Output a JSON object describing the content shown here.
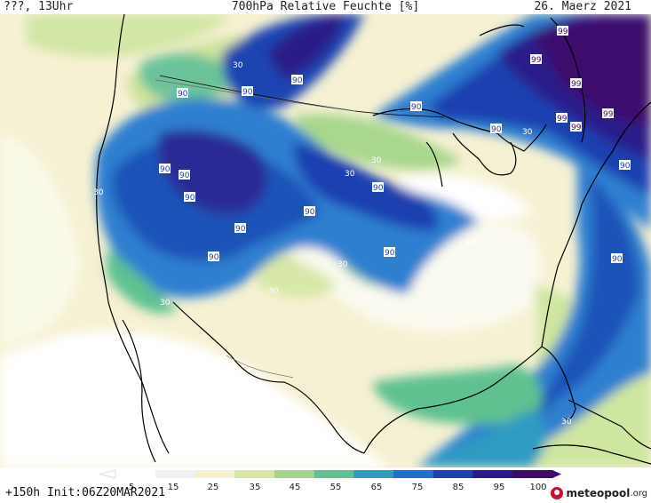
{
  "header": {
    "left": "???, 13Uhr",
    "center": "700hPa Relative Feuchte [%]",
    "right": "26. Maerz 2021"
  },
  "footer": {
    "run_info": "+150h Init:06Z20MAR2021",
    "logo_text": "meteopool",
    "logo_suffix": ".org"
  },
  "legend": {
    "ticks": [
      "5",
      "15",
      "25",
      "35",
      "45",
      "55",
      "65",
      "75",
      "85",
      "95",
      "100"
    ],
    "colors": [
      "#ffffff",
      "#f2f2f2",
      "#f5f0d0",
      "#d8e6a3",
      "#a6d58b",
      "#5fc190",
      "#2e9bc2",
      "#1f6fce",
      "#1e3fb0",
      "#2a1a8a",
      "#3d0a6e"
    ]
  },
  "map_labels": [
    {
      "text": "90"
    },
    {
      "text": "90"
    },
    {
      "text": "90"
    },
    {
      "text": "90"
    },
    {
      "text": "90"
    },
    {
      "text": "90"
    },
    {
      "text": "90"
    },
    {
      "text": "90"
    },
    {
      "text": "90"
    },
    {
      "text": "90"
    },
    {
      "text": "90"
    },
    {
      "text": "90"
    },
    {
      "text": "90"
    },
    {
      "text": "90"
    },
    {
      "text": "90"
    },
    {
      "text": "99"
    },
    {
      "text": "99"
    },
    {
      "text": "99"
    },
    {
      "text": "99"
    },
    {
      "text": "99"
    },
    {
      "text": "99"
    },
    {
      "text": "30"
    },
    {
      "text": "30"
    },
    {
      "text": "30"
    },
    {
      "text": "30"
    },
    {
      "text": "30"
    },
    {
      "text": "30"
    },
    {
      "text": "30"
    },
    {
      "text": "30"
    },
    {
      "text": "30"
    },
    {
      "text": "30"
    },
    {
      "text": "30"
    }
  ]
}
